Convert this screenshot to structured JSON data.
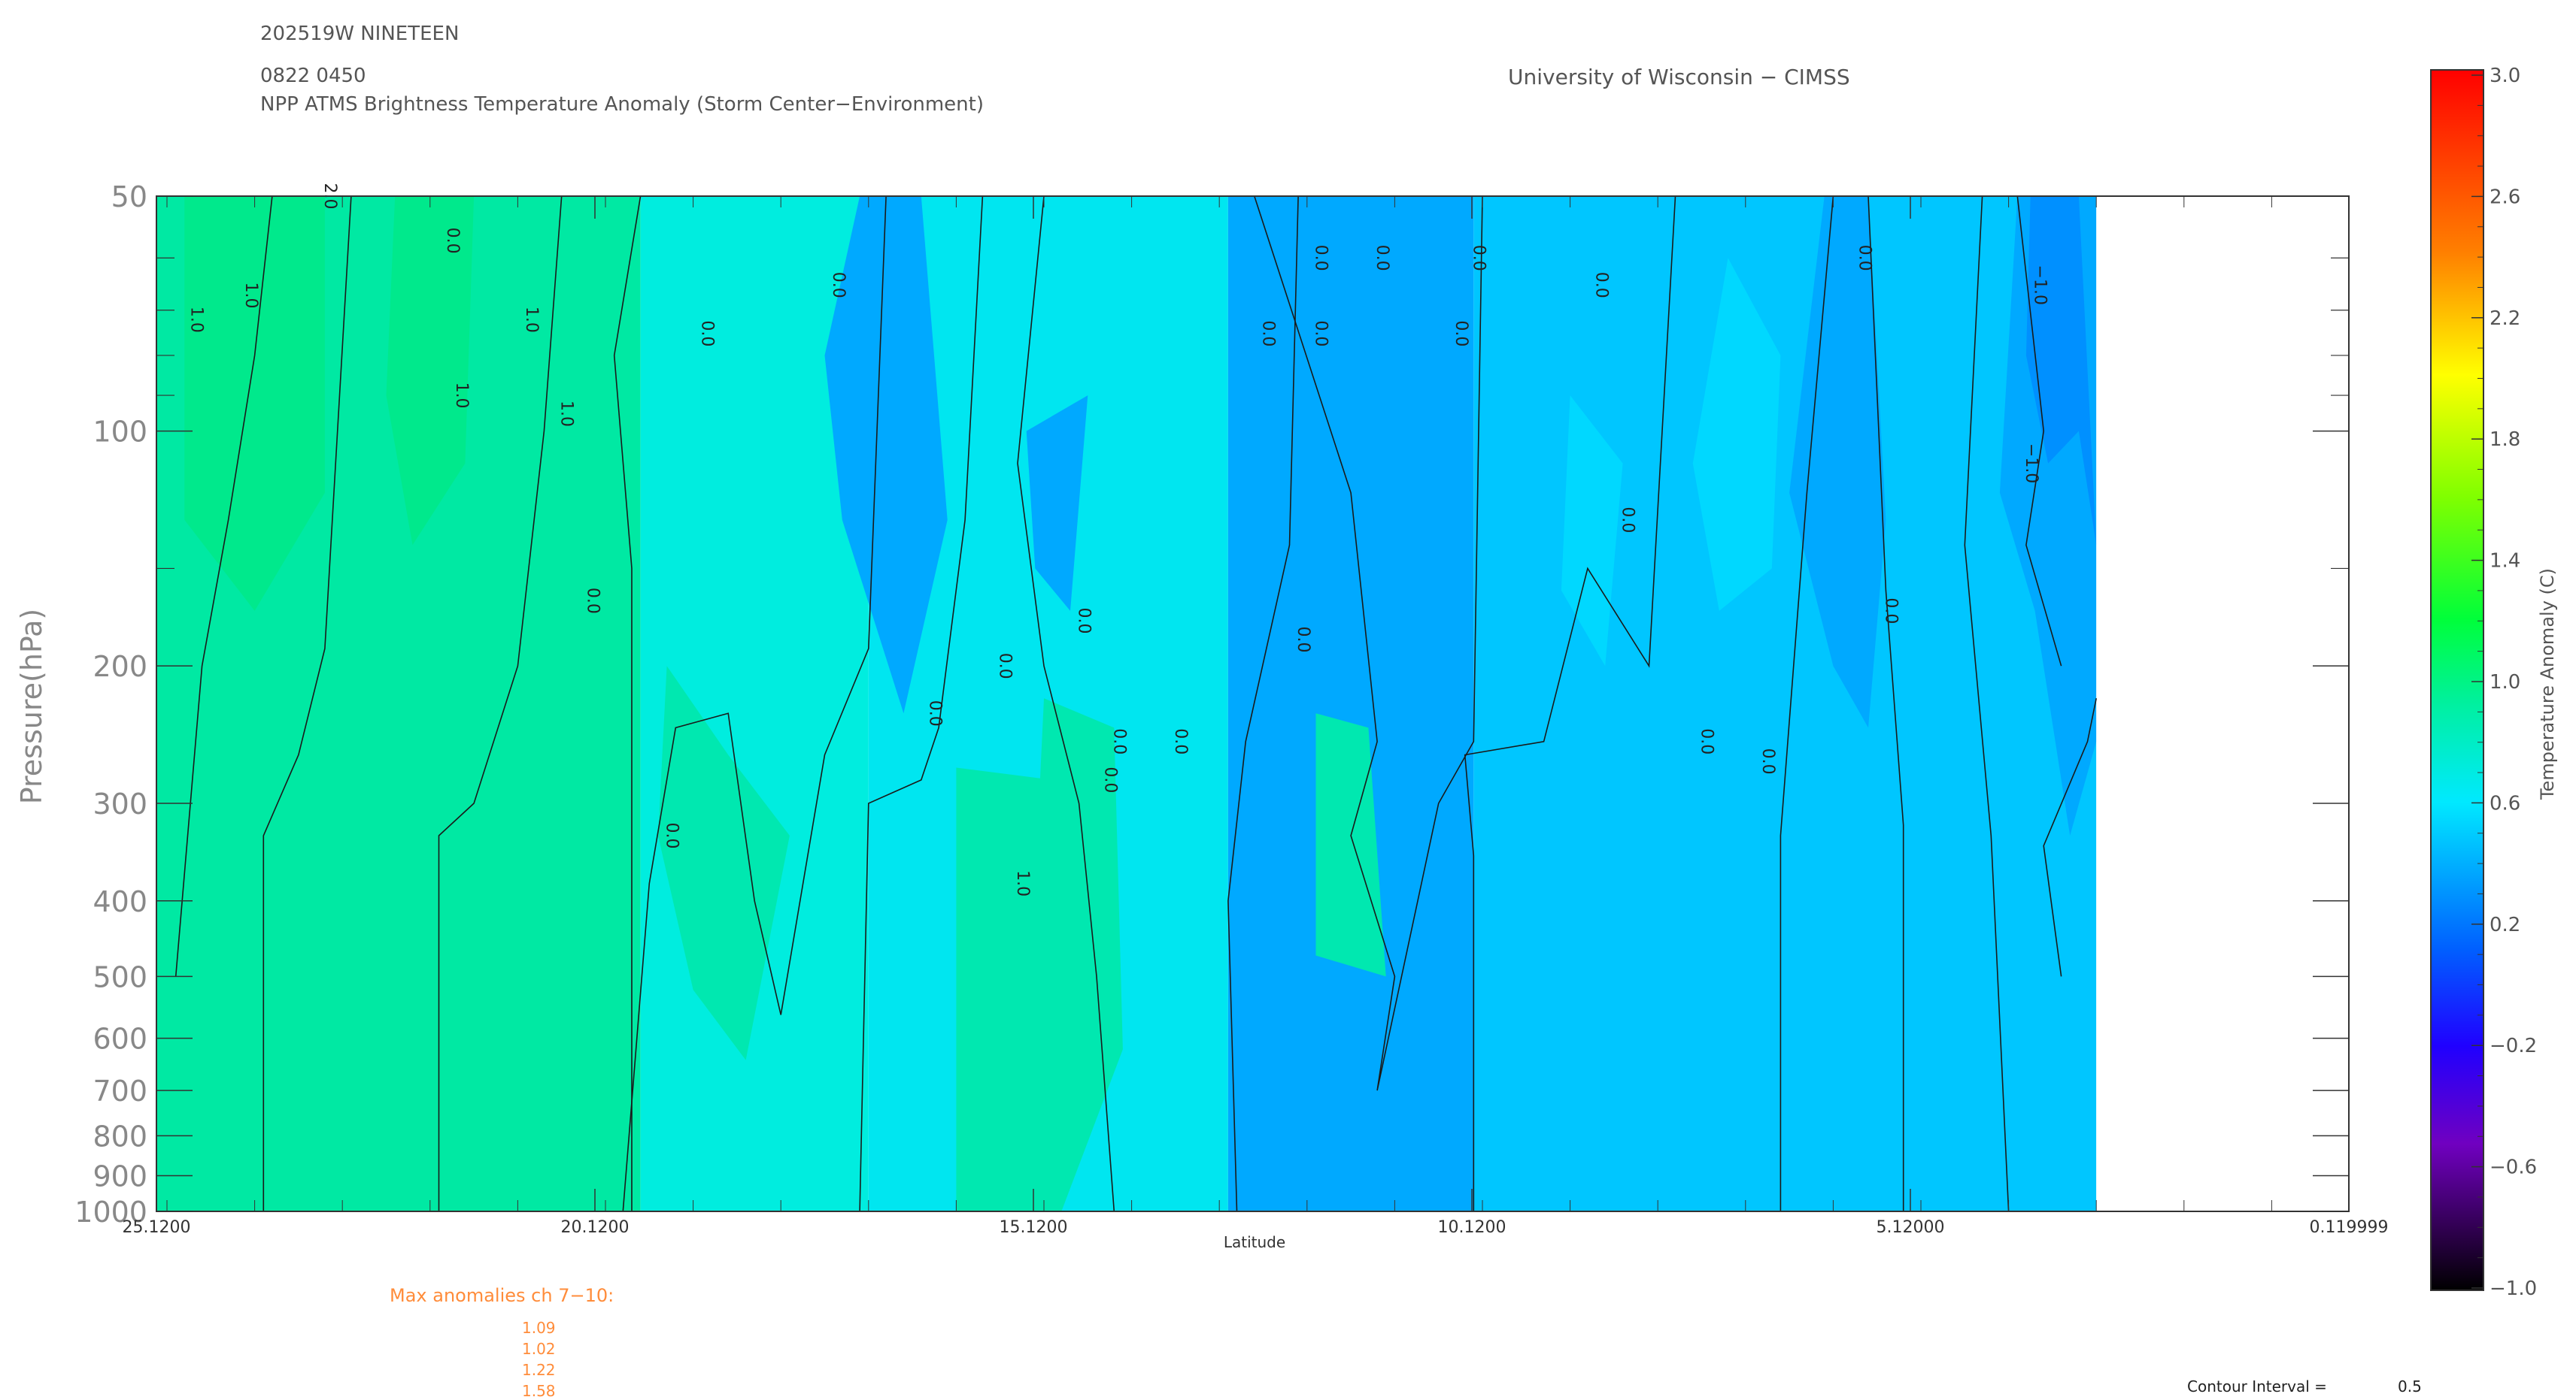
{
  "header": {
    "storm_id": "202519W NINETEEN",
    "datetime": "0822 0450",
    "title": "NPP ATMS Brightness Temperature Anomaly (Storm Center−Environment)",
    "institution": "University of Wisconsin − CIMSS"
  },
  "chart_data": {
    "type": "heatmap",
    "title": "NPP ATMS Brightness Temperature Anomaly (Storm Center−Environment)",
    "xlabel": "Latitude",
    "ylabel": "Pressure(hPa)",
    "x_ticks": [
      "25.1200",
      "20.1200",
      "15.1200",
      "10.1200",
      "5.12000",
      "0.119999"
    ],
    "x_tick_values": [
      25.12,
      20.12,
      15.12,
      10.12,
      5.12,
      0.119999
    ],
    "xlim": [
      25.12,
      0.119999
    ],
    "y_ticks": [
      "50",
      "100",
      "200",
      "300",
      "400",
      "500",
      "600",
      "700",
      "800",
      "900",
      "1000"
    ],
    "y_tick_values": [
      50,
      100,
      200,
      300,
      400,
      500,
      600,
      700,
      800,
      900,
      1000
    ],
    "ylim": [
      1000,
      50
    ],
    "y_scale": "log",
    "data_extent_latitude": [
      25.12,
      3.0
    ],
    "colorbar": {
      "label": "Temperature Anomaly (C)",
      "ticks": [
        "3.0",
        "2.6",
        "2.2",
        "1.8",
        "1.4",
        "1.0",
        "0.6",
        "0.2",
        "−0.2",
        "−0.6",
        "−1.0"
      ],
      "range": [
        -1.0,
        3.0
      ]
    },
    "regions": [
      {
        "lat": [
          25.12,
          19.6
        ],
        "value": 0.85,
        "color": "#00e9a3",
        "note": "upper levels near 1.0"
      },
      {
        "lat": [
          19.6,
          17.0
        ],
        "value": 0.7,
        "color": "#00eddf"
      },
      {
        "lat": [
          17.0,
          12.9
        ],
        "value": 0.55,
        "color": "#00e6f0"
      },
      {
        "lat": [
          12.9,
          10.1
        ],
        "value": 0.35,
        "color": "#00a9ff"
      },
      {
        "lat": [
          10.1,
          3.0
        ],
        "value": 0.45,
        "color": "#00c6ff",
        "note": "minimum near -1.0 at 50-150 hPa around 3.5N"
      }
    ],
    "contour_labels": [
      "2.0",
      "1.0",
      "0.0",
      "−1.0"
    ],
    "contour_interval": "0.5",
    "grid": false,
    "legend": "colorbar right"
  },
  "max_anomalies": {
    "heading": "Max anomalies ch 7−10:",
    "values": [
      "1.09",
      "1.02",
      "1.22",
      "1.58"
    ]
  },
  "contour_interval": {
    "label": "Contour Interval =",
    "value": "0.5"
  },
  "colors": {
    "text": "#555555",
    "orange": "#ff8c3a",
    "bg_main": "#00e6f0",
    "bg_green": "#00e9a3",
    "bg_blue": "#00c6ff",
    "bg_darkblue": "#00a9ff"
  }
}
